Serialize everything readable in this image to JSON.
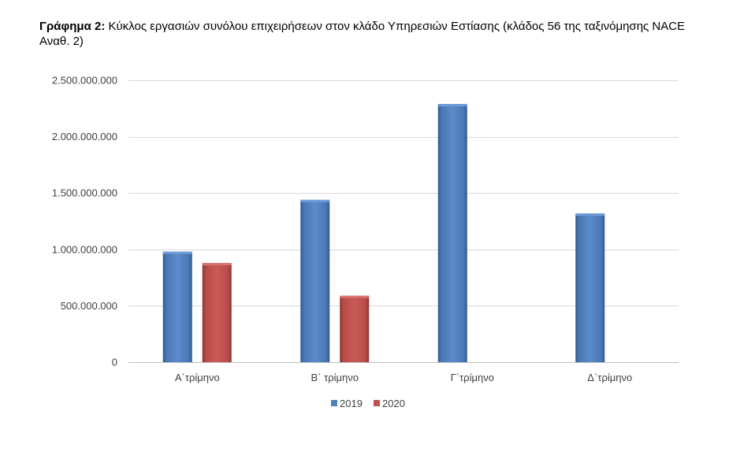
{
  "caption": {
    "label": "Γράφημα 2:",
    "text": " Κύκλος εργασιών συνόλου επιχειρήσεων στον κλάδο Υπηρεσιών Εστίασης (κλάδος 56 της ταξινόμησης NACE Αναθ. 2)"
  },
  "chart_data": {
    "type": "bar",
    "title": "Κύκλος εργασιών συνόλου επιχειρήσεων στον κλάδο Υπηρεσιών Εστίασης (κλάδος 56 της ταξινόμησης NACE Αναθ. 2)",
    "xlabel": "",
    "ylabel": "",
    "categories": [
      "Α΄τρίμηνο",
      "Β΄ τρίμηνο",
      "Γ΄τρίμηνο",
      "Δ΄τρίμηνο"
    ],
    "series": [
      {
        "name": "2019",
        "color": "#4F81BD",
        "values": [
          980000000,
          1440000000,
          2290000000,
          1320000000
        ]
      },
      {
        "name": "2020",
        "color": "#C0504D",
        "values": [
          880000000,
          590000000,
          null,
          null
        ]
      }
    ],
    "ylim": [
      0,
      2500000000
    ],
    "yticks": [
      0,
      500000000,
      1000000000,
      1500000000,
      2000000000,
      2500000000
    ],
    "ytick_labels": [
      "0",
      "500.000.000",
      "1.000.000.000",
      "1.500.000.000",
      "2.000.000.000",
      "2.500.000.000"
    ],
    "grid": true,
    "legend_position": "bottom"
  }
}
